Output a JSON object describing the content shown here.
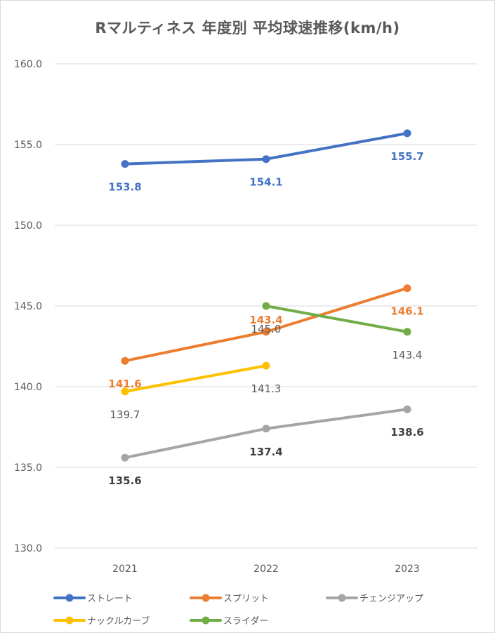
{
  "chart_data": {
    "type": "line",
    "title": "Rマルティネス 年度別 平均球速推移(km/h)",
    "xlabel": "",
    "ylabel": "",
    "categories": [
      "2021",
      "2022",
      "2023"
    ],
    "ylim": [
      130.0,
      160.0
    ],
    "yticks": [
      "130.0",
      "135.0",
      "140.0",
      "145.0",
      "150.0",
      "155.0",
      "160.0"
    ],
    "grid": true,
    "legend_position": "bottom",
    "series": [
      {
        "name": "ストレート",
        "color": "#4472c4",
        "label_color": "#4472c4",
        "label_bold": true,
        "values": [
          153.8,
          154.1,
          155.7
        ],
        "labels": [
          "153.8",
          "154.1",
          "155.7"
        ],
        "label_pos": [
          "below",
          "below",
          "below"
        ]
      },
      {
        "name": "スプリット",
        "color": "#ed7d31",
        "label_color": "#ed7d31",
        "label_bold": true,
        "values": [
          141.6,
          143.4,
          146.1
        ],
        "labels": [
          "141.6",
          "143.4",
          "146.1"
        ],
        "label_pos": [
          "below",
          "above",
          "below"
        ]
      },
      {
        "name": "チェンジアップ",
        "color": "#a5a5a5",
        "label_color": "#404040",
        "label_bold": true,
        "values": [
          135.6,
          137.4,
          138.6
        ],
        "labels": [
          "135.6",
          "137.4",
          "138.6"
        ],
        "label_pos": [
          "below",
          "below",
          "below"
        ]
      },
      {
        "name": "ナックルカーブ",
        "color": "#ffc000",
        "label_color": "#595959",
        "label_bold": false,
        "values": [
          139.7,
          141.3,
          null
        ],
        "labels": [
          "139.7",
          "141.3",
          ""
        ],
        "label_pos": [
          "below",
          "below",
          "below"
        ]
      },
      {
        "name": "スライダー",
        "color": "#70ad47",
        "label_color": "#595959",
        "label_bold": false,
        "values": [
          null,
          145.0,
          143.4
        ],
        "labels": [
          "",
          "145.0",
          "143.4"
        ],
        "label_pos": [
          "below",
          "below",
          "below"
        ]
      }
    ]
  }
}
